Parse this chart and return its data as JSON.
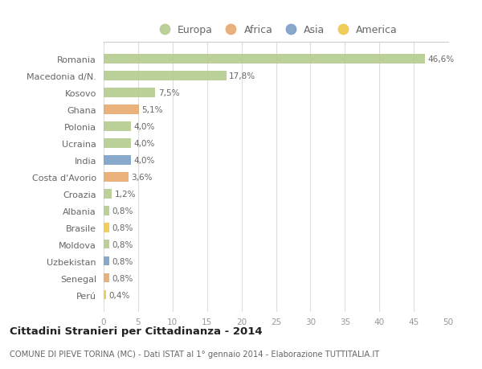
{
  "countries": [
    "Romania",
    "Macedonia d/N.",
    "Kosovo",
    "Ghana",
    "Polonia",
    "Ucraina",
    "India",
    "Costa d'Avorio",
    "Croazia",
    "Albania",
    "Brasile",
    "Moldova",
    "Uzbekistan",
    "Senegal",
    "Perú"
  ],
  "values": [
    46.6,
    17.8,
    7.5,
    5.1,
    4.0,
    4.0,
    4.0,
    3.6,
    1.2,
    0.8,
    0.8,
    0.8,
    0.8,
    0.8,
    0.4
  ],
  "labels": [
    "46,6%",
    "17,8%",
    "7,5%",
    "5,1%",
    "4,0%",
    "4,0%",
    "4,0%",
    "3,6%",
    "1,2%",
    "0,8%",
    "0,8%",
    "0,8%",
    "0,8%",
    "0,8%",
    "0,4%"
  ],
  "continents": [
    "Europa",
    "Europa",
    "Europa",
    "Africa",
    "Europa",
    "Europa",
    "Asia",
    "Africa",
    "Europa",
    "Europa",
    "America",
    "Europa",
    "Asia",
    "Africa",
    "America"
  ],
  "colors": {
    "Europa": "#b5cb8f",
    "Africa": "#e8a96e",
    "Asia": "#7b9fc7",
    "America": "#f0c84a"
  },
  "bg_color": "#ffffff",
  "plot_bg": "#ffffff",
  "grid_color": "#dddddd",
  "title": "Cittadini Stranieri per Cittadinanza - 2014",
  "subtitle": "COMUNE DI PIEVE TORINA (MC) - Dati ISTAT al 1° gennaio 2014 - Elaborazione TUTTITALIA.IT",
  "xlim": [
    0,
    50
  ],
  "xticks": [
    0,
    5,
    10,
    15,
    20,
    25,
    30,
    35,
    40,
    45,
    50
  ],
  "legend_order": [
    "Europa",
    "Africa",
    "Asia",
    "America"
  ]
}
